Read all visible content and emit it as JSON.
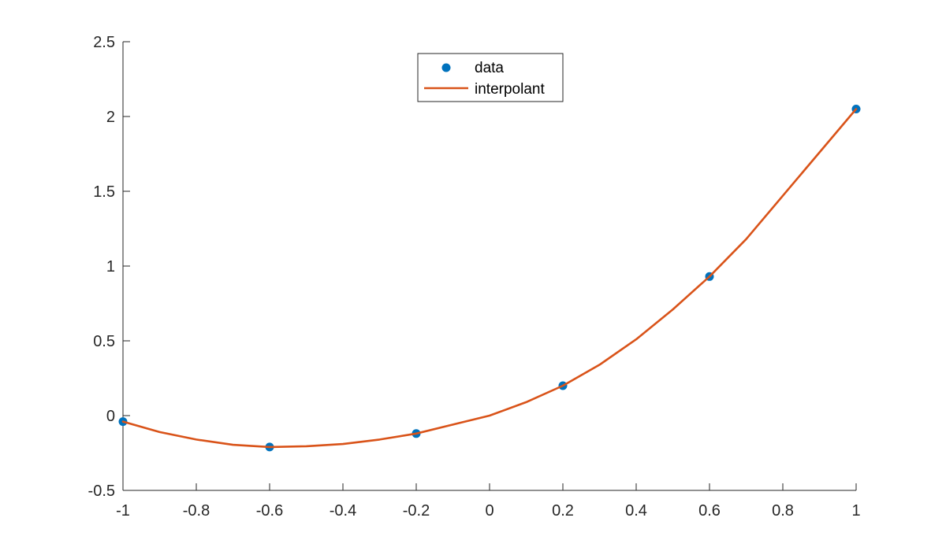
{
  "chart_data": {
    "type": "line",
    "title": "",
    "xlabel": "",
    "ylabel": "",
    "xlim": [
      -1,
      1
    ],
    "ylim": [
      -0.5,
      2.5
    ],
    "grid": false,
    "box": false,
    "x_ticks": [
      -1,
      -0.8,
      -0.6,
      -0.4,
      -0.2,
      0,
      0.2,
      0.4,
      0.6,
      0.8,
      1
    ],
    "x_tick_labels": [
      "-1",
      "-0.8",
      "-0.6",
      "-0.4",
      "-0.2",
      "0",
      "0.2",
      "0.4",
      "0.6",
      "0.8",
      "1"
    ],
    "y_ticks": [
      -0.5,
      0,
      0.5,
      1,
      1.5,
      2,
      2.5
    ],
    "y_tick_labels": [
      "-0.5",
      "0",
      "0.5",
      "1",
      "1.5",
      "2",
      "2.5"
    ],
    "legend_position": "top-center",
    "series": [
      {
        "name": "data",
        "kind": "markers",
        "color": "#0072BD",
        "x": [
          -1,
          -0.6,
          -0.2,
          0.2,
          0.6,
          1
        ],
        "y": [
          -0.04,
          -0.21,
          -0.12,
          0.2,
          0.93,
          2.05
        ]
      },
      {
        "name": "interpolant",
        "kind": "line",
        "color": "#D95319",
        "x": [
          -1,
          -0.9,
          -0.8,
          -0.7,
          -0.6,
          -0.5,
          -0.4,
          -0.3,
          -0.2,
          -0.1,
          0,
          0.1,
          0.2,
          0.3,
          0.4,
          0.5,
          0.6,
          0.7,
          0.8,
          0.9,
          1
        ],
        "y": [
          -0.04,
          -0.11,
          -0.16,
          -0.195,
          -0.21,
          -0.205,
          -0.19,
          -0.16,
          -0.12,
          -0.06,
          0.0,
          0.09,
          0.2,
          0.34,
          0.51,
          0.71,
          0.93,
          1.18,
          1.47,
          1.76,
          2.05
        ]
      }
    ]
  }
}
